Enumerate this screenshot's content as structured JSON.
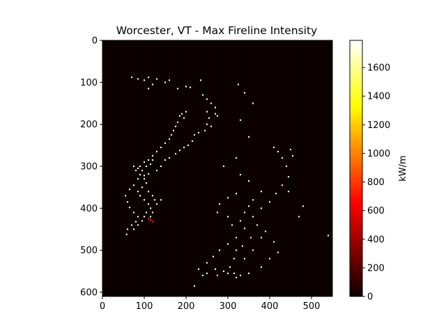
{
  "chart_data": {
    "type": "heatmap",
    "title": "Worcester, VT - Max Fireline Intensity",
    "xlabel": "",
    "ylabel": "",
    "xlim": [
      0,
      550
    ],
    "ylim": [
      610,
      0
    ],
    "x_ticks": [
      0,
      100,
      200,
      300,
      400,
      500
    ],
    "y_ticks": [
      0,
      100,
      200,
      300,
      400,
      500,
      600
    ],
    "colormap": "hot",
    "grid": false,
    "colorbar": {
      "label": "kW/m",
      "range": [
        0,
        1790
      ],
      "ticks": [
        0,
        200,
        400,
        600,
        800,
        1000,
        1200,
        1400,
        1600
      ]
    },
    "background_value": 0,
    "data_footprint": {
      "corners": [
        [
          0,
          0
        ],
        [
          550,
          0
        ],
        [
          550,
          610
        ],
        [
          0,
          610
        ]
      ]
    },
    "high_intensity_cells": [
      [
        70,
        88
      ],
      [
        85,
        92
      ],
      [
        100,
        95
      ],
      [
        110,
        88
      ],
      [
        120,
        105
      ],
      [
        110,
        115
      ],
      [
        130,
        92
      ],
      [
        150,
        100
      ],
      [
        160,
        95
      ],
      [
        180,
        115
      ],
      [
        200,
        110
      ],
      [
        210,
        112
      ],
      [
        235,
        95
      ],
      [
        240,
        130
      ],
      [
        250,
        140
      ],
      [
        260,
        150
      ],
      [
        270,
        160
      ],
      [
        250,
        170
      ],
      [
        270,
        175
      ],
      [
        275,
        180
      ],
      [
        255,
        185
      ],
      [
        250,
        200
      ],
      [
        260,
        205
      ],
      [
        245,
        215
      ],
      [
        230,
        220
      ],
      [
        220,
        225
      ],
      [
        215,
        240
      ],
      [
        205,
        250
      ],
      [
        195,
        255
      ],
      [
        185,
        262
      ],
      [
        175,
        270
      ],
      [
        160,
        280
      ],
      [
        150,
        285
      ],
      [
        140,
        300
      ],
      [
        130,
        310
      ],
      [
        110,
        318
      ],
      [
        100,
        322
      ],
      [
        85,
        330
      ],
      [
        75,
        345
      ],
      [
        65,
        355
      ],
      [
        55,
        370
      ],
      [
        60,
        385
      ],
      [
        65,
        398
      ],
      [
        75,
        410
      ],
      [
        85,
        420
      ],
      [
        80,
        432
      ],
      [
        70,
        440
      ],
      [
        60,
        450
      ],
      [
        58,
        462
      ],
      [
        185,
        180
      ],
      [
        190,
        175
      ],
      [
        195,
        185
      ],
      [
        200,
        170
      ],
      [
        180,
        195
      ],
      [
        175,
        205
      ],
      [
        170,
        215
      ],
      [
        165,
        225
      ],
      [
        160,
        235
      ],
      [
        150,
        245
      ],
      [
        140,
        255
      ],
      [
        130,
        265
      ],
      [
        120,
        275
      ],
      [
        110,
        285
      ],
      [
        100,
        290
      ],
      [
        90,
        300
      ],
      [
        85,
        305
      ],
      [
        95,
        310
      ],
      [
        105,
        300
      ],
      [
        115,
        295
      ],
      [
        120,
        285
      ],
      [
        75,
        300
      ],
      [
        80,
        310
      ],
      [
        90,
        320
      ],
      [
        100,
        330
      ],
      [
        105,
        340
      ],
      [
        95,
        350
      ],
      [
        85,
        360
      ],
      [
        90,
        370
      ],
      [
        100,
        380
      ],
      [
        110,
        390
      ],
      [
        115,
        400
      ],
      [
        105,
        410
      ],
      [
        100,
        420
      ],
      [
        95,
        430
      ],
      [
        85,
        440
      ],
      [
        75,
        450
      ],
      [
        110,
        360
      ],
      [
        120,
        370
      ],
      [
        125,
        380
      ],
      [
        115,
        420
      ],
      [
        120,
        410
      ],
      [
        130,
        390
      ],
      [
        140,
        380
      ],
      [
        325,
        105
      ],
      [
        340,
        125
      ],
      [
        360,
        150
      ],
      [
        330,
        190
      ],
      [
        350,
        230
      ],
      [
        320,
        280
      ],
      [
        290,
        300
      ],
      [
        330,
        320
      ],
      [
        350,
        335
      ],
      [
        320,
        365
      ],
      [
        300,
        375
      ],
      [
        280,
        390
      ],
      [
        275,
        410
      ],
      [
        300,
        420
      ],
      [
        330,
        430
      ],
      [
        340,
        448
      ],
      [
        320,
        470
      ],
      [
        300,
        485
      ],
      [
        280,
        500
      ],
      [
        265,
        515
      ],
      [
        250,
        530
      ],
      [
        270,
        545
      ],
      [
        300,
        555
      ],
      [
        330,
        560
      ],
      [
        350,
        555
      ],
      [
        380,
        540
      ],
      [
        400,
        520
      ],
      [
        420,
        505
      ],
      [
        410,
        480
      ],
      [
        390,
        455
      ],
      [
        370,
        440
      ],
      [
        360,
        420
      ],
      [
        380,
        400
      ],
      [
        400,
        385
      ],
      [
        415,
        365
      ],
      [
        430,
        345
      ],
      [
        445,
        325
      ],
      [
        440,
        300
      ],
      [
        430,
        280
      ],
      [
        420,
        265
      ],
      [
        410,
        255
      ],
      [
        450,
        260
      ],
      [
        455,
        275
      ],
      [
        480,
        395
      ],
      [
        540,
        465
      ],
      [
        470,
        420
      ],
      [
        445,
        360
      ],
      [
        380,
        360
      ],
      [
        360,
        380
      ],
      [
        350,
        395
      ],
      [
        340,
        410
      ],
      [
        310,
        440
      ],
      [
        320,
        500
      ],
      [
        340,
        520
      ],
      [
        360,
        500
      ],
      [
        380,
        470
      ],
      [
        355,
        470
      ],
      [
        335,
        490
      ],
      [
        315,
        520
      ],
      [
        305,
        540
      ],
      [
        290,
        550
      ],
      [
        275,
        560
      ],
      [
        320,
        565
      ],
      [
        315,
        555
      ],
      [
        250,
        555
      ],
      [
        220,
        585
      ],
      [
        240,
        560
      ],
      [
        230,
        545
      ]
    ],
    "medium_cells": [
      [
        110,
        425
      ],
      [
        115,
        428
      ],
      [
        120,
        432
      ]
    ]
  }
}
